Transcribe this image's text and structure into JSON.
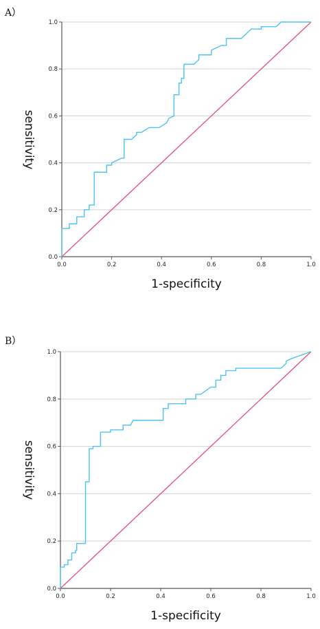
{
  "chart_data": [
    {
      "type": "line",
      "panel_label": "A）",
      "title": "",
      "xlabel": "1-specificity",
      "ylabel": "sensitivity",
      "xlim": [
        0,
        1
      ],
      "ylim": [
        0,
        1
      ],
      "x_ticks": [
        "0.0",
        "0.2",
        "0.4",
        "0.6",
        "0.8",
        "1.0"
      ],
      "y_ticks": [
        "0.0",
        "0.2",
        "0.4",
        "0.6",
        "0.8",
        "1.0"
      ],
      "grid": "horizontal",
      "colors": {
        "roc": "#4cc3f0",
        "reference": "#e05a7a",
        "grid": "#d9d9d9",
        "axis": "#555555"
      },
      "series": [
        {
          "points": [
            [
              0,
              0
            ],
            [
              0,
              0.12
            ],
            [
              0.03,
              0.12
            ],
            [
              0.03,
              0.14
            ],
            [
              0.06,
              0.14
            ],
            [
              0.06,
              0.17
            ],
            [
              0.09,
              0.17
            ],
            [
              0.09,
              0.2
            ],
            [
              0.11,
              0.2
            ],
            [
              0.11,
              0.22
            ],
            [
              0.13,
              0.22
            ],
            [
              0.13,
              0.36
            ],
            [
              0.18,
              0.36
            ],
            [
              0.18,
              0.39
            ],
            [
              0.2,
              0.39
            ],
            [
              0.2,
              0.4
            ],
            [
              0.22,
              0.41
            ],
            [
              0.24,
              0.42
            ],
            [
              0.25,
              0.42
            ],
            [
              0.25,
              0.5
            ],
            [
              0.28,
              0.5
            ],
            [
              0.3,
              0.52
            ],
            [
              0.3,
              0.53
            ],
            [
              0.32,
              0.53
            ],
            [
              0.35,
              0.55
            ],
            [
              0.39,
              0.55
            ],
            [
              0.42,
              0.57
            ],
            [
              0.43,
              0.59
            ],
            [
              0.45,
              0.6
            ],
            [
              0.45,
              0.69
            ],
            [
              0.47,
              0.69
            ],
            [
              0.47,
              0.74
            ],
            [
              0.48,
              0.74
            ],
            [
              0.48,
              0.76
            ],
            [
              0.49,
              0.76
            ],
            [
              0.49,
              0.82
            ],
            [
              0.53,
              0.82
            ],
            [
              0.55,
              0.84
            ],
            [
              0.55,
              0.86
            ],
            [
              0.6,
              0.86
            ],
            [
              0.6,
              0.88
            ],
            [
              0.64,
              0.9
            ],
            [
              0.66,
              0.9
            ],
            [
              0.66,
              0.93
            ],
            [
              0.72,
              0.93
            ],
            [
              0.76,
              0.97
            ],
            [
              0.8,
              0.97
            ],
            [
              0.8,
              0.98
            ],
            [
              0.86,
              0.98
            ],
            [
              0.88,
              1.0
            ],
            [
              1.0,
              1.0
            ]
          ]
        },
        {
          "points": [
            [
              0,
              0
            ],
            [
              1,
              1
            ]
          ]
        }
      ]
    },
    {
      "type": "line",
      "panel_label": "B）",
      "title": "",
      "xlabel": "1-specificity",
      "ylabel": "sensitivity",
      "xlim": [
        0,
        1
      ],
      "ylim": [
        0,
        1
      ],
      "x_ticks": [
        "0.0",
        "0.2",
        "0.4",
        "0.6",
        "0.8",
        "1.0"
      ],
      "y_ticks": [
        "0.0",
        "0.2",
        "0.4",
        "0.6",
        "0.8",
        "1.0"
      ],
      "grid": "horizontal",
      "colors": {
        "roc": "#4cc3f0",
        "reference": "#e05a7a",
        "grid": "#d9d9d9",
        "axis": "#555555"
      },
      "series": [
        {
          "points": [
            [
              0,
              0
            ],
            [
              0,
              0.09
            ],
            [
              0.015,
              0.09
            ],
            [
              0.015,
              0.1
            ],
            [
              0.03,
              0.1
            ],
            [
              0.03,
              0.12
            ],
            [
              0.045,
              0.12
            ],
            [
              0.045,
              0.15
            ],
            [
              0.06,
              0.15
            ],
            [
              0.06,
              0.16
            ],
            [
              0.065,
              0.16
            ],
            [
              0.065,
              0.19
            ],
            [
              0.1,
              0.19
            ],
            [
              0.1,
              0.45
            ],
            [
              0.115,
              0.45
            ],
            [
              0.115,
              0.59
            ],
            [
              0.13,
              0.59
            ],
            [
              0.13,
              0.6
            ],
            [
              0.16,
              0.6
            ],
            [
              0.16,
              0.66
            ],
            [
              0.2,
              0.66
            ],
            [
              0.2,
              0.67
            ],
            [
              0.25,
              0.67
            ],
            [
              0.25,
              0.69
            ],
            [
              0.28,
              0.69
            ],
            [
              0.29,
              0.71
            ],
            [
              0.41,
              0.71
            ],
            [
              0.41,
              0.76
            ],
            [
              0.43,
              0.76
            ],
            [
              0.43,
              0.78
            ],
            [
              0.5,
              0.78
            ],
            [
              0.5,
              0.8
            ],
            [
              0.54,
              0.8
            ],
            [
              0.54,
              0.82
            ],
            [
              0.56,
              0.82
            ],
            [
              0.6,
              0.85
            ],
            [
              0.62,
              0.85
            ],
            [
              0.62,
              0.88
            ],
            [
              0.64,
              0.88
            ],
            [
              0.64,
              0.9
            ],
            [
              0.66,
              0.9
            ],
            [
              0.66,
              0.92
            ],
            [
              0.7,
              0.92
            ],
            [
              0.7,
              0.93
            ],
            [
              0.88,
              0.93
            ],
            [
              0.9,
              0.95
            ],
            [
              0.9,
              0.96
            ],
            [
              0.92,
              0.97
            ],
            [
              1.0,
              1.0
            ]
          ]
        },
        {
          "points": [
            [
              0,
              0
            ],
            [
              1,
              1
            ]
          ]
        }
      ]
    }
  ]
}
